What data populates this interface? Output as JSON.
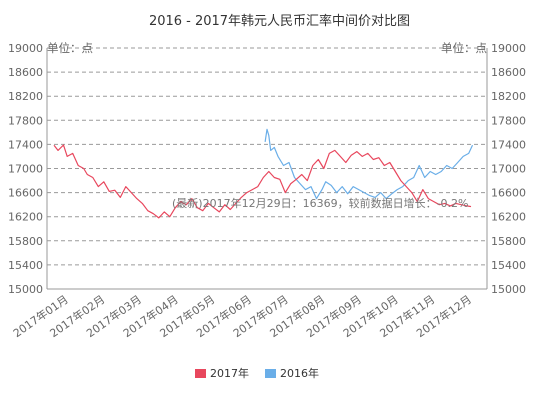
{
  "chart_data": {
    "type": "line",
    "title": "2016 - 2017年韩元人民币汇率中间价对比图",
    "ylabel_left": "单位：点",
    "ylabel_right": "单位：点",
    "ylim": [
      15000,
      19000
    ],
    "yticks": [
      15000,
      15400,
      15800,
      16200,
      16600,
      17000,
      17400,
      17800,
      18200,
      18600,
      19000
    ],
    "categories": [
      "2017年01月",
      "2017年02月",
      "2017年03月",
      "2017年04月",
      "2017年05月",
      "2017年06月",
      "2017年07月",
      "2017年08月",
      "2017年09月",
      "2017年10月",
      "2017年11月",
      "2017年12月"
    ],
    "grid": true,
    "legend_position": "bottom",
    "annotation": "(最新)2017年12月29日：16369，较前数据日增长：-0.2%",
    "series": [
      {
        "name": "2017年",
        "color": "#e8475d",
        "values": [
          [
            0.2,
            17380
          ],
          [
            0.3,
            17300
          ],
          [
            0.45,
            17390
          ],
          [
            0.55,
            17200
          ],
          [
            0.7,
            17250
          ],
          [
            0.85,
            17050
          ],
          [
            1.0,
            17000
          ],
          [
            1.1,
            16900
          ],
          [
            1.25,
            16850
          ],
          [
            1.4,
            16700
          ],
          [
            1.55,
            16780
          ],
          [
            1.7,
            16620
          ],
          [
            1.85,
            16640
          ],
          [
            2.0,
            16520
          ],
          [
            2.15,
            16700
          ],
          [
            2.3,
            16600
          ],
          [
            2.45,
            16500
          ],
          [
            2.6,
            16420
          ],
          [
            2.75,
            16300
          ],
          [
            2.9,
            16250
          ],
          [
            3.05,
            16180
          ],
          [
            3.2,
            16280
          ],
          [
            3.35,
            16200
          ],
          [
            3.5,
            16350
          ],
          [
            3.65,
            16450
          ],
          [
            3.8,
            16400
          ],
          [
            3.95,
            16500
          ],
          [
            4.1,
            16350
          ],
          [
            4.25,
            16300
          ],
          [
            4.4,
            16420
          ],
          [
            4.55,
            16350
          ],
          [
            4.7,
            16280
          ],
          [
            4.85,
            16400
          ],
          [
            5.0,
            16320
          ],
          [
            5.15,
            16420
          ],
          [
            5.3,
            16520
          ],
          [
            5.45,
            16600
          ],
          [
            5.6,
            16650
          ],
          [
            5.75,
            16700
          ],
          [
            5.9,
            16850
          ],
          [
            6.05,
            16950
          ],
          [
            6.2,
            16850
          ],
          [
            6.35,
            16820
          ],
          [
            6.5,
            16600
          ],
          [
            6.65,
            16750
          ],
          [
            6.8,
            16820
          ],
          [
            6.95,
            16900
          ],
          [
            7.1,
            16800
          ],
          [
            7.25,
            17050
          ],
          [
            7.4,
            17150
          ],
          [
            7.55,
            17000
          ],
          [
            7.7,
            17250
          ],
          [
            7.85,
            17300
          ],
          [
            8.0,
            17200
          ],
          [
            8.15,
            17100
          ],
          [
            8.3,
            17220
          ],
          [
            8.45,
            17280
          ],
          [
            8.6,
            17200
          ],
          [
            8.75,
            17250
          ],
          [
            8.9,
            17150
          ],
          [
            9.05,
            17180
          ],
          [
            9.2,
            17050
          ],
          [
            9.35,
            17100
          ],
          [
            9.5,
            16950
          ],
          [
            9.65,
            16800
          ],
          [
            9.8,
            16700
          ],
          [
            9.95,
            16600
          ],
          [
            10.1,
            16450
          ],
          [
            10.25,
            16650
          ],
          [
            10.4,
            16500
          ],
          [
            10.55,
            16450
          ],
          [
            10.7,
            16400
          ],
          [
            10.85,
            16420
          ],
          [
            11.0,
            16380
          ],
          [
            11.15,
            16420
          ],
          [
            11.3,
            16400
          ],
          [
            11.45,
            16380
          ],
          [
            11.55,
            16369
          ]
        ]
      },
      {
        "name": "2016年",
        "color": "#6aaee8",
        "values": [
          [
            5.95,
            17450
          ],
          [
            6.0,
            17650
          ],
          [
            6.05,
            17550
          ],
          [
            6.1,
            17300
          ],
          [
            6.2,
            17350
          ],
          [
            6.3,
            17200
          ],
          [
            6.45,
            17050
          ],
          [
            6.6,
            17100
          ],
          [
            6.75,
            16850
          ],
          [
            6.9,
            16750
          ],
          [
            7.05,
            16650
          ],
          [
            7.2,
            16700
          ],
          [
            7.35,
            16500
          ],
          [
            7.5,
            16650
          ],
          [
            7.6,
            16780
          ],
          [
            7.75,
            16720
          ],
          [
            7.9,
            16600
          ],
          [
            8.05,
            16700
          ],
          [
            8.2,
            16580
          ],
          [
            8.35,
            16700
          ],
          [
            8.5,
            16650
          ],
          [
            8.65,
            16600
          ],
          [
            8.8,
            16550
          ],
          [
            8.95,
            16520
          ],
          [
            9.1,
            16600
          ],
          [
            9.25,
            16500
          ],
          [
            9.4,
            16580
          ],
          [
            9.55,
            16650
          ],
          [
            9.7,
            16700
          ],
          [
            9.85,
            16800
          ],
          [
            10.0,
            16850
          ],
          [
            10.15,
            17050
          ],
          [
            10.3,
            16850
          ],
          [
            10.45,
            16950
          ],
          [
            10.6,
            16900
          ],
          [
            10.75,
            16950
          ],
          [
            10.9,
            17050
          ],
          [
            11.05,
            17000
          ],
          [
            11.2,
            17100
          ],
          [
            11.35,
            17200
          ],
          [
            11.5,
            17250
          ],
          [
            11.6,
            17380
          ]
        ]
      }
    ]
  }
}
